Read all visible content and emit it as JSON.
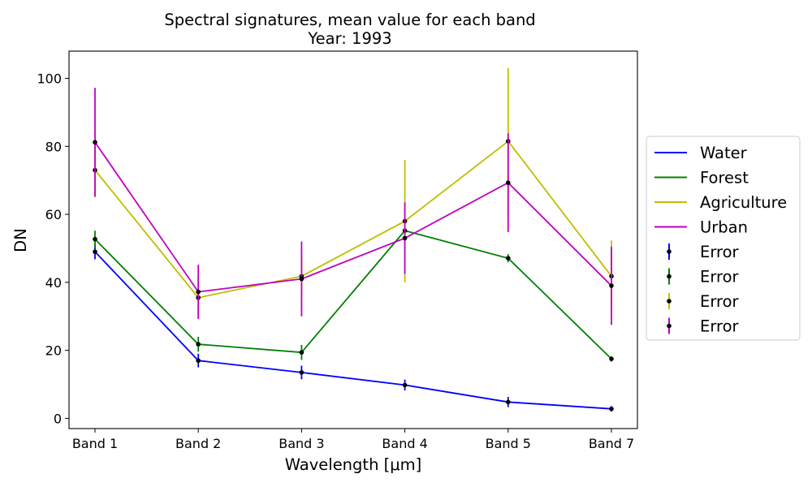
{
  "chart_data": {
    "type": "line",
    "title": "Spectral signatures, mean value for each band",
    "subtitle": "Year: 1993",
    "xlabel": "Wavelength [μm]",
    "ylabel": "DN",
    "categories": [
      "Band 1",
      "Band 2",
      "Band 3",
      "Band 4",
      "Band 5",
      "Band 7"
    ],
    "ylim": [
      -3,
      108
    ],
    "yticks": [
      0,
      20,
      40,
      60,
      80,
      100
    ],
    "grid": false,
    "legend": "right",
    "series": [
      {
        "name": "Water",
        "color": "#0000ff",
        "values": [
          49,
          17,
          13.5,
          9.8,
          4.8,
          2.8
        ],
        "errors": [
          2.2,
          2.0,
          2.0,
          1.6,
          1.5,
          0.8
        ]
      },
      {
        "name": "Forest",
        "color": "#008000",
        "values": [
          52.7,
          21.8,
          19.4,
          55.2,
          47.1,
          17.5
        ],
        "errors": [
          2.5,
          2.2,
          2.2,
          1.5,
          1.2,
          0.8
        ]
      },
      {
        "name": "Agriculture",
        "color": "#bfbf00",
        "values": [
          73,
          35.5,
          41.8,
          58,
          81.5,
          41.8
        ],
        "errors": [
          8,
          6,
          6,
          18,
          21.5,
          10.5
        ]
      },
      {
        "name": "Urban",
        "color": "#bf00bf",
        "values": [
          81.2,
          37.2,
          41,
          53,
          69.3,
          39
        ],
        "errors": [
          16,
          8,
          11,
          10.5,
          14.5,
          11.5
        ]
      }
    ],
    "error_legend_label": "Error"
  }
}
